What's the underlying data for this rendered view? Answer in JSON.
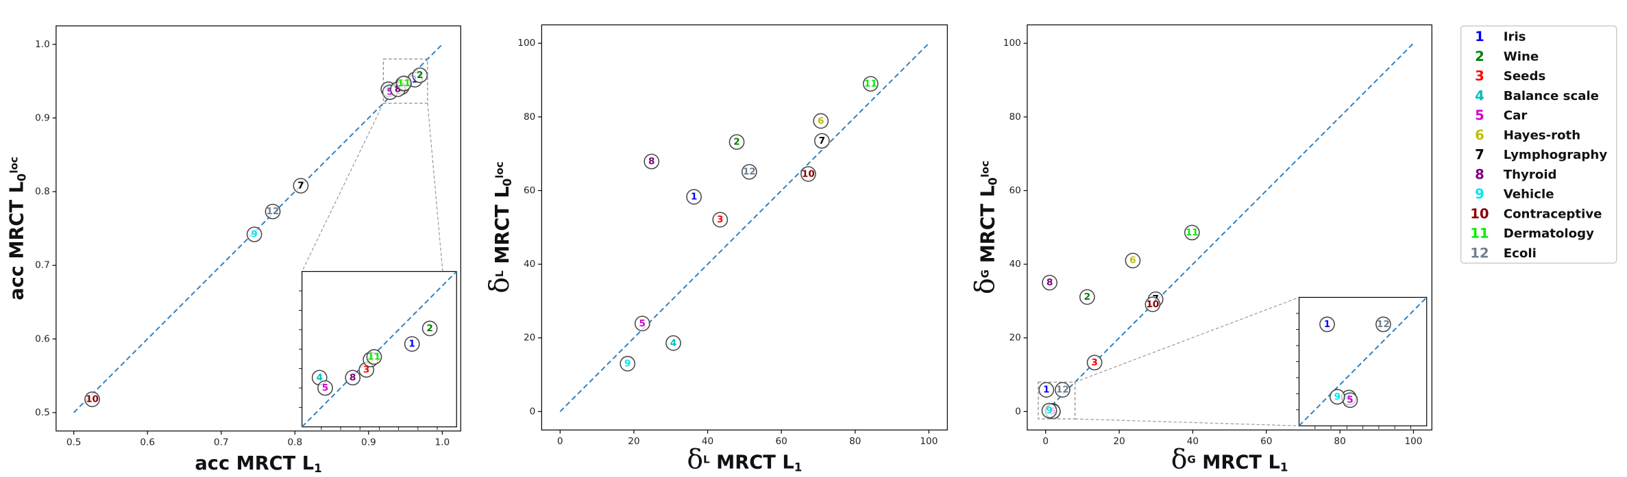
{
  "datasets": [
    {
      "number": "1",
      "name": "Iris",
      "color": "#0000ff"
    },
    {
      "number": "2",
      "name": "Wine",
      "color": "#008000"
    },
    {
      "number": "3",
      "name": "Seeds",
      "color": "#ff0000"
    },
    {
      "number": "4",
      "name": "Balance scale",
      "color": "#00bfbf"
    },
    {
      "number": "5",
      "name": "Car",
      "color": "#d000d0"
    },
    {
      "number": "6",
      "name": "Hayes-roth",
      "color": "#bfbf00"
    },
    {
      "number": "7",
      "name": "Lymphography",
      "color": "#000000"
    },
    {
      "number": "8",
      "name": "Thyroid",
      "color": "#800080"
    },
    {
      "number": "9",
      "name": "Vehicle",
      "color": "#00e5ee"
    },
    {
      "number": "10",
      "name": "Contraceptive",
      "color": "#8b0000"
    },
    {
      "number": "11",
      "name": "Dermatology",
      "color": "#00ee00"
    },
    {
      "number": "12",
      "name": "Ecoli",
      "color": "#708090"
    }
  ],
  "chart_data": [
    {
      "type": "scatter",
      "xlabel": [
        {
          "text": "acc MRCT L"
        },
        {
          "text": "1",
          "style": "sub"
        }
      ],
      "ylabel": [
        {
          "text": "acc MRCT L"
        },
        {
          "text": "0",
          "style": "sub"
        },
        {
          "text": "loc",
          "style": "sup"
        }
      ],
      "xlim": [
        0.476,
        1.025
      ],
      "ylim": [
        0.475,
        1.025
      ],
      "xticks": [
        0.5,
        0.6,
        0.7,
        0.8,
        0.9,
        {
          "value": 1.0,
          "label": "1.0"
        }
      ],
      "yticks": [
        0.5,
        0.6,
        0.7,
        0.8,
        0.9,
        {
          "value": 1.0,
          "label": "1.0"
        }
      ],
      "x": [
        0.9627,
        0.9696,
        0.945,
        0.9268,
        0.929,
        0.9466,
        0.808,
        0.9397,
        0.745,
        0.525,
        0.948,
        0.77
      ],
      "y": [
        0.952,
        0.958,
        0.942,
        0.939,
        0.935,
        0.946,
        0.808,
        0.939,
        0.742,
        0.518,
        0.947,
        0.773
      ],
      "diagonal": [
        0.5,
        1.0
      ],
      "inset": {
        "xlim": [
          0.92,
          0.98
        ],
        "ylim": [
          0.92,
          0.98
        ]
      }
    },
    {
      "type": "scatter",
      "xlabel": [
        {
          "text": "δ",
          "style": "symbol"
        },
        {
          "text": "L",
          "style": "sup"
        },
        {
          "text": " MRCT L"
        },
        {
          "text": "1",
          "style": "sub"
        }
      ],
      "ylabel": [
        {
          "text": "δ",
          "style": "symbol"
        },
        {
          "text": "L",
          "style": "sup"
        },
        {
          "text": " MRCT L"
        },
        {
          "text": "0",
          "style": "sub"
        },
        {
          "text": "loc",
          "style": "sup"
        }
      ],
      "xlim": [
        -5,
        105
      ],
      "ylim": [
        -5,
        105
      ],
      "xticks": [
        0,
        20,
        40,
        60,
        80,
        100
      ],
      "yticks": [
        0,
        20,
        40,
        60,
        80,
        100
      ],
      "x": [
        36.3,
        47.9,
        43.4,
        30.7,
        22.3,
        70.7,
        71.0,
        24.8,
        18.3,
        67.3,
        84.2,
        51.3
      ],
      "y": [
        58.3,
        73.2,
        52.1,
        18.6,
        23.9,
        78.9,
        73.5,
        67.9,
        13.0,
        64.5,
        89.0,
        65.1
      ],
      "diagonal": [
        0,
        100
      ]
    },
    {
      "type": "scatter",
      "xlabel": [
        {
          "text": "δ",
          "style": "symbol"
        },
        {
          "text": "G",
          "style": "sup"
        },
        {
          "text": " MRCT L"
        },
        {
          "text": "1",
          "style": "sub"
        }
      ],
      "ylabel": [
        {
          "text": "δ",
          "style": "symbol"
        },
        {
          "text": "G",
          "style": "sup"
        },
        {
          "text": " MRCT L"
        },
        {
          "text": "0",
          "style": "sub"
        },
        {
          "text": "loc",
          "style": "sup"
        }
      ],
      "xlim": [
        -5,
        105
      ],
      "ylim": [
        -5,
        105
      ],
      "xticks": [
        0,
        20,
        40,
        60,
        80,
        100
      ],
      "yticks": [
        0,
        20,
        40,
        60,
        80,
        100
      ],
      "x": [
        0.2,
        11.3,
        13.3,
        1.9,
        2.0,
        23.7,
        29.9,
        1.1,
        1.0,
        29.1,
        39.8,
        4.6
      ],
      "y": [
        5.9,
        31.1,
        13.3,
        0.2,
        0.0,
        41.0,
        30.5,
        35.0,
        0.26,
        29.1,
        48.6,
        5.9
      ],
      "diagonal": [
        0,
        100
      ],
      "inset": {
        "xlim": [
          -2,
          8
        ],
        "ylim": [
          -2,
          8
        ]
      }
    }
  ]
}
